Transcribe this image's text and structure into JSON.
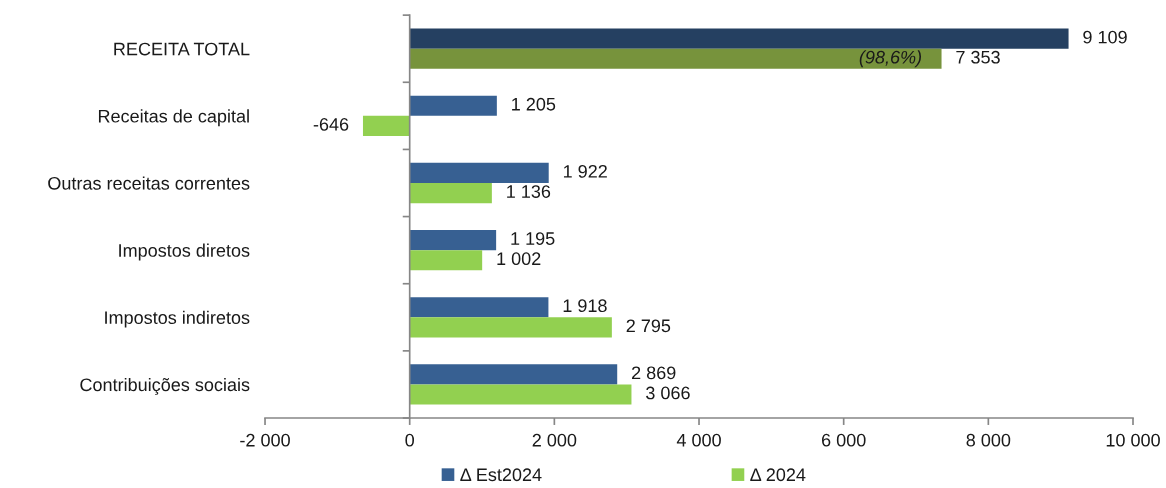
{
  "chart_data": {
    "type": "bar",
    "orientation": "horizontal",
    "categories": [
      "RECEITA TOTAL",
      "Receitas de capital",
      "Outras receitas correntes",
      "Impostos diretos",
      "Impostos indiretos",
      "Contribuições sociais"
    ],
    "series": [
      {
        "name": "Δ Est2024",
        "color": "#376092",
        "colors": [
          "#254061",
          "#376092",
          "#376092",
          "#376092",
          "#376092",
          "#376092"
        ],
        "values": [
          9109,
          1205,
          1922,
          1195,
          1918,
          2869
        ],
        "value_labels": [
          "9 109",
          "1 205",
          "1 922",
          "1 195",
          "1 918",
          "2 869"
        ]
      },
      {
        "name": "Δ 2024",
        "color": "#92d050",
        "colors": [
          "#77933c",
          "#92d050",
          "#92d050",
          "#92d050",
          "#92d050",
          "#92d050"
        ],
        "values": [
          7353,
          -646,
          1136,
          1002,
          2795,
          3066
        ],
        "value_labels": [
          "7 353",
          "-646",
          "1 136",
          "1 002",
          "2 795",
          "3 066"
        ]
      }
    ],
    "xlim": [
      -2000,
      10000
    ],
    "xticks": [
      {
        "value": -2000,
        "label": "-2 000"
      },
      0,
      {
        "value": 2000,
        "label": "2 000"
      },
      {
        "value": 4000,
        "label": "4 000"
      },
      {
        "value": 6000,
        "label": "6 000"
      },
      {
        "value": 8000,
        "label": "8 000"
      },
      {
        "value": 10000,
        "label": "10 000"
      }
    ],
    "annotations": [
      {
        "text": "(98,6%)",
        "x": 7353,
        "y": "RECEITA TOTAL"
      }
    ],
    "legend": "bottom"
  }
}
